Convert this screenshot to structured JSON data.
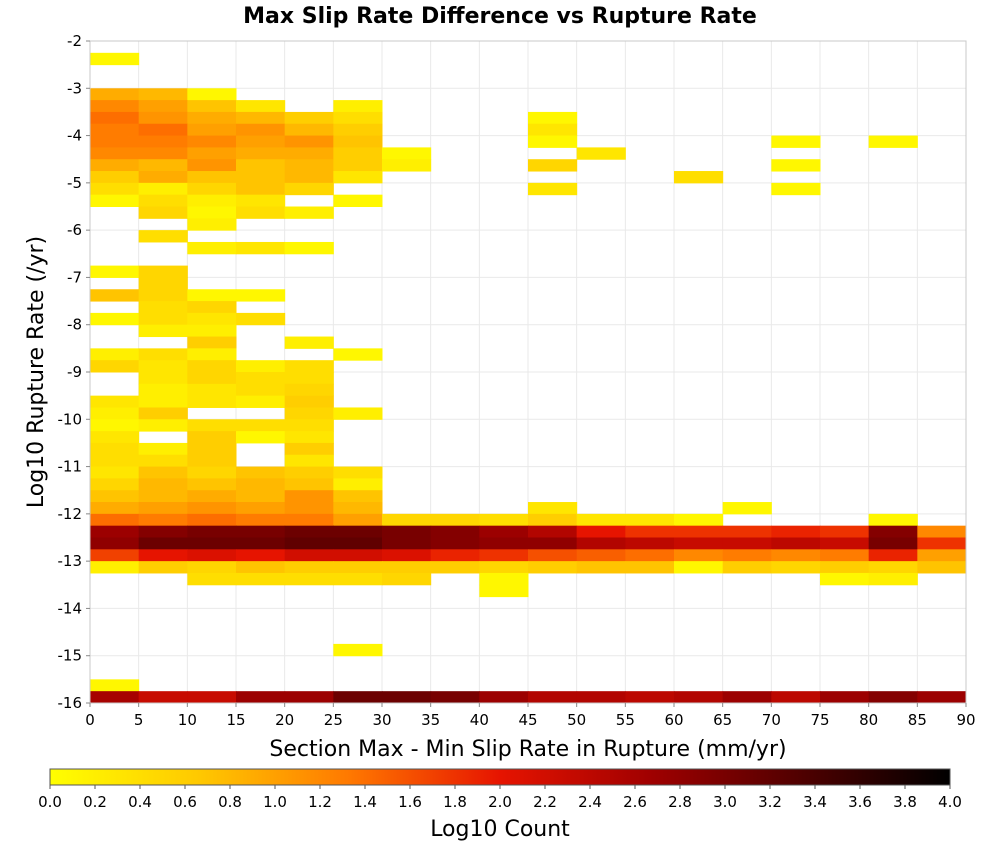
{
  "chart_data": {
    "type": "heatmap",
    "title": "Max Slip Rate Difference vs Rupture Rate",
    "xlabel": "Section Max - Min Slip Rate in Rupture (mm/yr)",
    "ylabel": "Log10 Rupture Rate (/yr)",
    "xlim": [
      0,
      90
    ],
    "ylim": [
      -16,
      -2
    ],
    "x_bin_width": 5,
    "y_bin_height": 0.25,
    "x_ticks": [
      "0",
      "5",
      "10",
      "15",
      "20",
      "25",
      "30",
      "35",
      "40",
      "45",
      "50",
      "55",
      "60",
      "65",
      "70",
      "75",
      "80",
      "85",
      "90"
    ],
    "y_ticks": [
      "-2",
      "-3",
      "-4",
      "-5",
      "-6",
      "-7",
      "-8",
      "-9",
      "-10",
      "-11",
      "-12",
      "-13",
      "-14",
      "-15",
      "-16"
    ],
    "grid": true,
    "colorbar": {
      "label": "Log10 Count",
      "min": 0.0,
      "max": 4.0,
      "ticks": [
        "0.0",
        "0.2",
        "0.4",
        "0.6",
        "0.8",
        "1.0",
        "1.2",
        "1.4",
        "1.6",
        "1.8",
        "2.0",
        "2.2",
        "2.4",
        "2.6",
        "2.8",
        "3.0",
        "3.2",
        "3.4",
        "3.6",
        "3.8",
        "4.0"
      ],
      "colors": [
        "#ffff00",
        "#ffc800",
        "#ff7800",
        "#e61400",
        "#a00000",
        "#500000",
        "#000000"
      ]
    },
    "cells": [
      [
        0,
        -2.25,
        0.1
      ],
      [
        0,
        -3.0,
        0.9
      ],
      [
        5,
        -3.0,
        0.8
      ],
      [
        10,
        -3.0,
        0.1
      ],
      [
        0,
        -3.25,
        1.2
      ],
      [
        5,
        -3.25,
        1.0
      ],
      [
        10,
        -3.25,
        0.7
      ],
      [
        15,
        -3.25,
        0.3
      ],
      [
        25,
        -3.25,
        0.2
      ],
      [
        0,
        -3.5,
        1.4
      ],
      [
        5,
        -3.5,
        1.1
      ],
      [
        10,
        -3.5,
        0.9
      ],
      [
        15,
        -3.5,
        0.8
      ],
      [
        20,
        -3.5,
        0.6
      ],
      [
        25,
        -3.5,
        0.4
      ],
      [
        45,
        -3.5,
        0.1
      ],
      [
        0,
        -3.75,
        1.3
      ],
      [
        5,
        -3.75,
        1.4
      ],
      [
        10,
        -3.75,
        1.0
      ],
      [
        15,
        -3.75,
        1.1
      ],
      [
        20,
        -3.75,
        0.8
      ],
      [
        25,
        -3.75,
        0.6
      ],
      [
        45,
        -3.75,
        0.3
      ],
      [
        0,
        -4.0,
        1.3
      ],
      [
        5,
        -4.0,
        1.3
      ],
      [
        10,
        -4.0,
        1.2
      ],
      [
        15,
        -4.0,
        1.0
      ],
      [
        20,
        -4.0,
        1.1
      ],
      [
        25,
        -4.0,
        0.7
      ],
      [
        45,
        -4.0,
        0.1
      ],
      [
        70,
        -4.0,
        0.1
      ],
      [
        80,
        -4.0,
        0.1
      ],
      [
        0,
        -4.25,
        1.2
      ],
      [
        5,
        -4.25,
        1.2
      ],
      [
        10,
        -4.25,
        1.0
      ],
      [
        15,
        -4.25,
        0.9
      ],
      [
        20,
        -4.25,
        0.9
      ],
      [
        25,
        -4.25,
        0.6
      ],
      [
        30,
        -4.25,
        0.1
      ],
      [
        50,
        -4.25,
        0.3
      ],
      [
        0,
        -4.5,
        0.9
      ],
      [
        5,
        -4.5,
        0.8
      ],
      [
        10,
        -4.5,
        1.1
      ],
      [
        15,
        -4.5,
        0.7
      ],
      [
        20,
        -4.5,
        0.8
      ],
      [
        25,
        -4.5,
        0.6
      ],
      [
        30,
        -4.5,
        0.2
      ],
      [
        45,
        -4.5,
        0.5
      ],
      [
        70,
        -4.5,
        0.1
      ],
      [
        0,
        -4.75,
        0.6
      ],
      [
        5,
        -4.75,
        0.9
      ],
      [
        10,
        -4.75,
        0.7
      ],
      [
        15,
        -4.75,
        0.7
      ],
      [
        20,
        -4.75,
        0.8
      ],
      [
        25,
        -4.75,
        0.3
      ],
      [
        60,
        -4.75,
        0.4
      ],
      [
        0,
        -5.0,
        0.4
      ],
      [
        5,
        -5.0,
        0.2
      ],
      [
        10,
        -5.0,
        0.5
      ],
      [
        15,
        -5.0,
        0.7
      ],
      [
        20,
        -5.0,
        0.5
      ],
      [
        45,
        -5.0,
        0.3
      ],
      [
        70,
        -5.0,
        0.1
      ],
      [
        0,
        -5.25,
        0.1
      ],
      [
        5,
        -5.25,
        0.4
      ],
      [
        10,
        -5.25,
        0.2
      ],
      [
        15,
        -5.25,
        0.3
      ],
      [
        25,
        -5.25,
        0.1
      ],
      [
        5,
        -5.5,
        0.5
      ],
      [
        10,
        -5.5,
        0.1
      ],
      [
        15,
        -5.5,
        0.4
      ],
      [
        20,
        -5.5,
        0.2
      ],
      [
        10,
        -5.75,
        0.2
      ],
      [
        5,
        -6.0,
        0.4
      ],
      [
        10,
        -6.25,
        0.2
      ],
      [
        15,
        -6.25,
        0.3
      ],
      [
        20,
        -6.25,
        0.1
      ],
      [
        0,
        -6.75,
        0.1
      ],
      [
        5,
        -6.75,
        0.5
      ],
      [
        5,
        -7.0,
        0.5
      ],
      [
        0,
        -7.25,
        0.7
      ],
      [
        5,
        -7.25,
        0.5
      ],
      [
        10,
        -7.25,
        0.1
      ],
      [
        15,
        -7.25,
        0.1
      ],
      [
        5,
        -7.5,
        0.4
      ],
      [
        10,
        -7.5,
        0.5
      ],
      [
        0,
        -7.75,
        0.1
      ],
      [
        5,
        -7.75,
        0.4
      ],
      [
        10,
        -7.75,
        0.3
      ],
      [
        15,
        -7.75,
        0.4
      ],
      [
        5,
        -8.0,
        0.2
      ],
      [
        10,
        -8.0,
        0.2
      ],
      [
        10,
        -8.25,
        0.6
      ],
      [
        20,
        -8.25,
        0.2
      ],
      [
        0,
        -8.5,
        0.2
      ],
      [
        5,
        -8.5,
        0.4
      ],
      [
        10,
        -8.5,
        0.2
      ],
      [
        25,
        -8.5,
        0.1
      ],
      [
        0,
        -8.75,
        0.5
      ],
      [
        5,
        -8.75,
        0.3
      ],
      [
        10,
        -8.75,
        0.5
      ],
      [
        15,
        -8.75,
        0.2
      ],
      [
        20,
        -8.75,
        0.4
      ],
      [
        5,
        -9.0,
        0.3
      ],
      [
        10,
        -9.0,
        0.5
      ],
      [
        15,
        -9.0,
        0.4
      ],
      [
        20,
        -9.0,
        0.4
      ],
      [
        5,
        -9.25,
        0.2
      ],
      [
        10,
        -9.25,
        0.3
      ],
      [
        15,
        -9.25,
        0.4
      ],
      [
        20,
        -9.25,
        0.5
      ],
      [
        0,
        -9.5,
        0.3
      ],
      [
        5,
        -9.5,
        0.2
      ],
      [
        10,
        -9.5,
        0.3
      ],
      [
        15,
        -9.5,
        0.2
      ],
      [
        20,
        -9.5,
        0.6
      ],
      [
        0,
        -9.75,
        0.2
      ],
      [
        5,
        -9.75,
        0.6
      ],
      [
        20,
        -9.75,
        0.5
      ],
      [
        25,
        -9.75,
        0.2
      ],
      [
        0,
        -10.0,
        0.1
      ],
      [
        5,
        -10.0,
        0.2
      ],
      [
        10,
        -10.0,
        0.4
      ],
      [
        15,
        -10.0,
        0.4
      ],
      [
        20,
        -10.0,
        0.4
      ],
      [
        0,
        -10.25,
        0.3
      ],
      [
        10,
        -10.25,
        0.6
      ],
      [
        15,
        -10.25,
        0.1
      ],
      [
        20,
        -10.25,
        0.3
      ],
      [
        0,
        -10.5,
        0.4
      ],
      [
        5,
        -10.5,
        0.2
      ],
      [
        10,
        -10.5,
        0.6
      ],
      [
        20,
        -10.5,
        0.6
      ],
      [
        0,
        -10.75,
        0.4
      ],
      [
        5,
        -10.75,
        0.4
      ],
      [
        10,
        -10.75,
        0.6
      ],
      [
        20,
        -10.75,
        0.3
      ],
      [
        0,
        -11.0,
        0.3
      ],
      [
        5,
        -11.0,
        0.7
      ],
      [
        10,
        -11.0,
        0.5
      ],
      [
        15,
        -11.0,
        0.7
      ],
      [
        20,
        -11.0,
        0.6
      ],
      [
        25,
        -11.0,
        0.4
      ],
      [
        0,
        -11.25,
        0.5
      ],
      [
        5,
        -11.25,
        0.8
      ],
      [
        10,
        -11.25,
        0.7
      ],
      [
        15,
        -11.25,
        0.8
      ],
      [
        20,
        -11.25,
        0.7
      ],
      [
        25,
        -11.25,
        0.2
      ],
      [
        0,
        -11.5,
        0.7
      ],
      [
        5,
        -11.5,
        0.8
      ],
      [
        10,
        -11.5,
        0.9
      ],
      [
        15,
        -11.5,
        0.8
      ],
      [
        20,
        -11.5,
        1.1
      ],
      [
        25,
        -11.5,
        0.7
      ],
      [
        0,
        -11.75,
        0.9
      ],
      [
        5,
        -11.75,
        1.0
      ],
      [
        10,
        -11.75,
        1.1
      ],
      [
        15,
        -11.75,
        1.0
      ],
      [
        20,
        -11.75,
        1.1
      ],
      [
        25,
        -11.75,
        0.8
      ],
      [
        45,
        -11.75,
        0.3
      ],
      [
        65,
        -11.75,
        0.1
      ],
      [
        0,
        -12.0,
        1.4
      ],
      [
        5,
        -12.0,
        1.3
      ],
      [
        10,
        -12.0,
        1.4
      ],
      [
        15,
        -12.0,
        1.3
      ],
      [
        20,
        -12.0,
        1.3
      ],
      [
        25,
        -12.0,
        1.0
      ],
      [
        30,
        -12.0,
        0.5
      ],
      [
        35,
        -12.0,
        0.5
      ],
      [
        40,
        -12.0,
        0.4
      ],
      [
        45,
        -12.0,
        0.6
      ],
      [
        50,
        -12.0,
        0.3
      ],
      [
        55,
        -12.0,
        0.3
      ],
      [
        60,
        -12.0,
        0.1
      ],
      [
        80,
        -12.0,
        0.1
      ],
      [
        0,
        -12.25,
        2.7
      ],
      [
        5,
        -12.25,
        2.9
      ],
      [
        10,
        -12.25,
        3.0
      ],
      [
        15,
        -12.25,
        3.0
      ],
      [
        20,
        -12.25,
        3.1
      ],
      [
        25,
        -12.25,
        3.1
      ],
      [
        30,
        -12.25,
        3.0
      ],
      [
        35,
        -12.25,
        2.9
      ],
      [
        40,
        -12.25,
        2.7
      ],
      [
        45,
        -12.25,
        2.5
      ],
      [
        50,
        -12.25,
        2.0
      ],
      [
        55,
        -12.25,
        1.8
      ],
      [
        60,
        -12.25,
        1.8
      ],
      [
        65,
        -12.25,
        1.8
      ],
      [
        70,
        -12.25,
        1.9
      ],
      [
        75,
        -12.25,
        1.8
      ],
      [
        80,
        -12.25,
        2.9
      ],
      [
        85,
        -12.25,
        1.2
      ],
      [
        0,
        -12.5,
        2.8
      ],
      [
        5,
        -12.5,
        3.1
      ],
      [
        10,
        -12.5,
        3.1
      ],
      [
        15,
        -12.5,
        3.1
      ],
      [
        20,
        -12.5,
        3.2
      ],
      [
        25,
        -12.5,
        3.2
      ],
      [
        30,
        -12.5,
        3.0
      ],
      [
        35,
        -12.5,
        2.9
      ],
      [
        40,
        -12.5,
        2.8
      ],
      [
        45,
        -12.5,
        2.8
      ],
      [
        50,
        -12.5,
        2.5
      ],
      [
        55,
        -12.5,
        2.4
      ],
      [
        60,
        -12.5,
        2.3
      ],
      [
        65,
        -12.5,
        2.3
      ],
      [
        70,
        -12.5,
        2.4
      ],
      [
        75,
        -12.5,
        2.3
      ],
      [
        80,
        -12.5,
        3.0
      ],
      [
        85,
        -12.5,
        1.8
      ],
      [
        0,
        -12.75,
        1.7
      ],
      [
        5,
        -12.75,
        2.0
      ],
      [
        10,
        -12.75,
        2.1
      ],
      [
        15,
        -12.75,
        2.0
      ],
      [
        20,
        -12.75,
        2.2
      ],
      [
        25,
        -12.75,
        2.2
      ],
      [
        30,
        -12.75,
        2.1
      ],
      [
        35,
        -12.75,
        1.9
      ],
      [
        40,
        -12.75,
        1.8
      ],
      [
        45,
        -12.75,
        1.6
      ],
      [
        50,
        -12.75,
        1.5
      ],
      [
        55,
        -12.75,
        1.4
      ],
      [
        60,
        -12.75,
        1.2
      ],
      [
        65,
        -12.75,
        1.3
      ],
      [
        70,
        -12.75,
        1.2
      ],
      [
        75,
        -12.75,
        1.3
      ],
      [
        80,
        -12.75,
        1.9
      ],
      [
        85,
        -12.75,
        1.0
      ],
      [
        0,
        -13.0,
        0.2
      ],
      [
        5,
        -13.0,
        0.6
      ],
      [
        10,
        -13.0,
        0.5
      ],
      [
        15,
        -13.0,
        0.7
      ],
      [
        20,
        -13.0,
        0.6
      ],
      [
        25,
        -13.0,
        0.6
      ],
      [
        30,
        -13.0,
        0.6
      ],
      [
        35,
        -13.0,
        0.6
      ],
      [
        40,
        -13.0,
        0.5
      ],
      [
        45,
        -13.0,
        0.6
      ],
      [
        50,
        -13.0,
        0.7
      ],
      [
        55,
        -13.0,
        0.7
      ],
      [
        60,
        -13.0,
        0.1
      ],
      [
        65,
        -13.0,
        0.6
      ],
      [
        70,
        -13.0,
        0.5
      ],
      [
        75,
        -13.0,
        0.6
      ],
      [
        80,
        -13.0,
        0.5
      ],
      [
        85,
        -13.0,
        0.7
      ],
      [
        10,
        -13.25,
        0.4
      ],
      [
        15,
        -13.25,
        0.4
      ],
      [
        20,
        -13.25,
        0.4
      ],
      [
        25,
        -13.25,
        0.4
      ],
      [
        30,
        -13.25,
        0.5
      ],
      [
        40,
        -13.25,
        0.1
      ],
      [
        75,
        -13.25,
        0.1
      ],
      [
        80,
        -13.25,
        0.2
      ],
      [
        40,
        -13.5,
        0.1
      ],
      [
        25,
        -14.75,
        0.1
      ],
      [
        0,
        -15.5,
        0.1
      ],
      [
        0,
        -15.75,
        2.6
      ],
      [
        5,
        -15.75,
        2.3
      ],
      [
        10,
        -15.75,
        2.3
      ],
      [
        15,
        -15.75,
        2.7
      ],
      [
        20,
        -15.75,
        2.7
      ],
      [
        25,
        -15.75,
        3.1
      ],
      [
        30,
        -15.75,
        3.1
      ],
      [
        35,
        -15.75,
        3.0
      ],
      [
        40,
        -15.75,
        2.7
      ],
      [
        45,
        -15.75,
        2.5
      ],
      [
        50,
        -15.75,
        2.5
      ],
      [
        55,
        -15.75,
        2.4
      ],
      [
        60,
        -15.75,
        2.5
      ],
      [
        65,
        -15.75,
        2.7
      ],
      [
        70,
        -15.75,
        2.4
      ],
      [
        75,
        -15.75,
        2.7
      ],
      [
        80,
        -15.75,
        2.9
      ],
      [
        85,
        -15.75,
        2.7
      ]
    ]
  }
}
